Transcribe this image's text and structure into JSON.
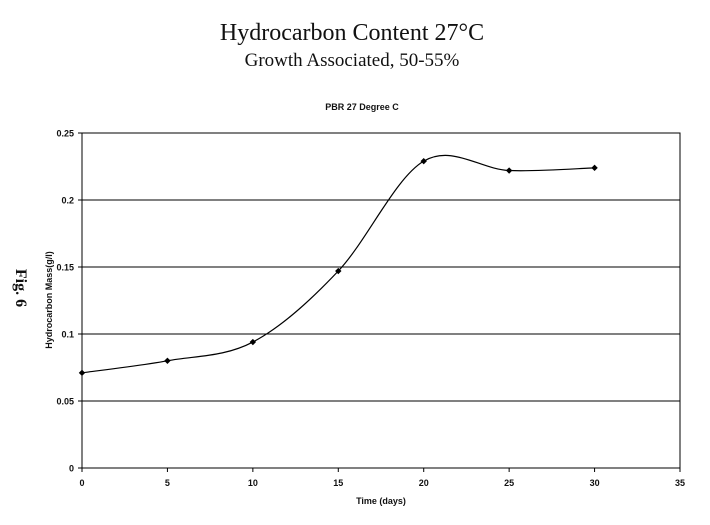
{
  "header": {
    "title": "Hydrocarbon Content 27°C",
    "subtitle": "Growth Associated, 50-55%"
  },
  "figure_label": "Fig. 6",
  "chart_data": {
    "type": "line",
    "title": "PBR 27 Degree C",
    "xlabel": "Time (days)",
    "ylabel": "Hydrocarbon Mass(g/l)",
    "xlim": [
      0,
      35
    ],
    "ylim": [
      0,
      0.25
    ],
    "x_ticks": [
      0,
      5,
      10,
      15,
      20,
      25,
      30,
      35
    ],
    "y_ticks": [
      0,
      0.05,
      0.1,
      0.15,
      0.2,
      0.25
    ],
    "x_tick_labels": [
      "0",
      "5",
      "10",
      "15",
      "20",
      "25",
      "30",
      "35"
    ],
    "y_tick_labels": [
      "0",
      "0.05",
      "0.1",
      "0.15",
      "0.2",
      "0.25"
    ],
    "grid": "horizontal",
    "legend": "none",
    "line_color": "#000000",
    "smooth": true,
    "series": [
      {
        "x": [
          0,
          5,
          10,
          15,
          20,
          25,
          30
        ],
        "y": [
          0.071,
          0.08,
          0.094,
          0.147,
          0.229,
          0.222,
          0.224
        ]
      }
    ]
  }
}
